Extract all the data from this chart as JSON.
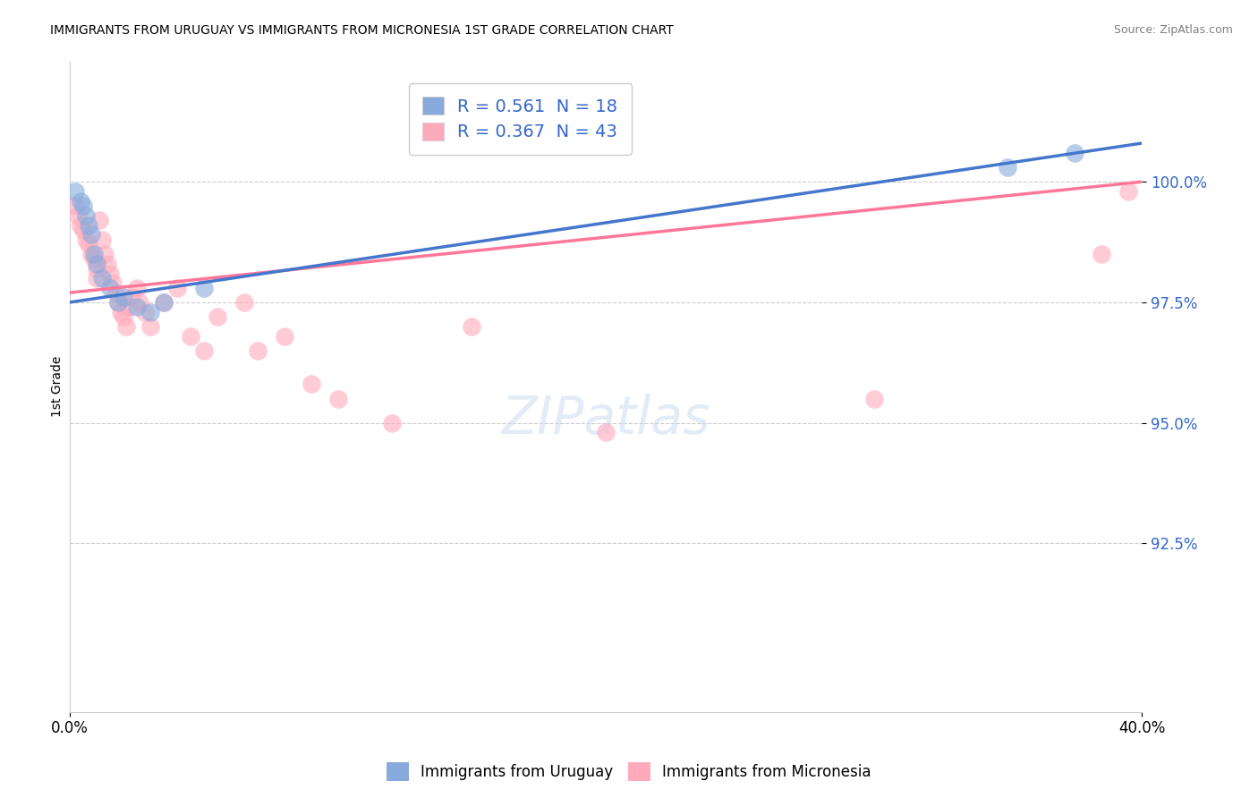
{
  "title": "IMMIGRANTS FROM URUGUAY VS IMMIGRANTS FROM MICRONESIA 1ST GRADE CORRELATION CHART",
  "source": "Source: ZipAtlas.com",
  "ylabel": "1st Grade",
  "xlim": [
    0.0,
    40.0
  ],
  "ylim": [
    89.0,
    102.5
  ],
  "yticks": [
    92.5,
    95.0,
    97.5,
    100.0
  ],
  "ytick_labels": [
    "92.5%",
    "95.0%",
    "97.5%",
    "100.0%"
  ],
  "xticks": [
    0.0,
    40.0
  ],
  "xtick_labels": [
    "0.0%",
    "40.0%"
  ],
  "legend_text_blue": "R = 0.561  N = 18",
  "legend_text_pink": "R = 0.367  N = 43",
  "legend_label_blue": "Immigrants from Uruguay",
  "legend_label_pink": "Immigrants from Micronesia",
  "blue_scatter_color": "#88AADD",
  "pink_scatter_color": "#FFAABC",
  "blue_line_color": "#4477CC",
  "pink_line_color": "#FF7799",
  "text_color": "#3366CC",
  "uruguay_x": [
    0.2,
    0.4,
    0.5,
    0.6,
    0.7,
    0.8,
    0.9,
    1.0,
    1.2,
    1.5,
    1.8,
    2.0,
    2.5,
    3.0,
    3.5,
    5.0,
    35.0,
    37.5
  ],
  "uruguay_y": [
    99.8,
    99.6,
    99.5,
    99.3,
    99.1,
    98.9,
    98.5,
    98.3,
    98.0,
    97.8,
    97.5,
    97.6,
    97.4,
    97.3,
    97.5,
    97.8,
    100.3,
    100.6
  ],
  "micronesia_x": [
    0.2,
    0.3,
    0.4,
    0.5,
    0.6,
    0.7,
    0.8,
    0.9,
    1.0,
    1.0,
    1.1,
    1.2,
    1.3,
    1.4,
    1.5,
    1.6,
    1.7,
    1.8,
    1.9,
    2.0,
    2.1,
    2.2,
    2.3,
    2.5,
    2.6,
    2.8,
    3.0,
    3.5,
    4.0,
    4.5,
    5.0,
    5.5,
    6.5,
    7.0,
    8.0,
    9.0,
    10.0,
    12.0,
    15.0,
    20.0,
    30.0,
    38.5,
    39.5
  ],
  "micronesia_y": [
    99.5,
    99.3,
    99.1,
    99.0,
    98.8,
    98.7,
    98.5,
    98.4,
    98.2,
    98.0,
    99.2,
    98.8,
    98.5,
    98.3,
    98.1,
    97.9,
    97.7,
    97.5,
    97.3,
    97.2,
    97.0,
    97.4,
    97.6,
    97.8,
    97.5,
    97.3,
    97.0,
    97.5,
    97.8,
    96.8,
    96.5,
    97.2,
    97.5,
    96.5,
    96.8,
    95.8,
    95.5,
    95.0,
    97.0,
    94.8,
    95.5,
    98.5,
    99.8
  ],
  "trendline_blue_y0": 97.5,
  "trendline_blue_y1": 100.8,
  "trendline_pink_y0": 97.7,
  "trendline_pink_y1": 100.0
}
